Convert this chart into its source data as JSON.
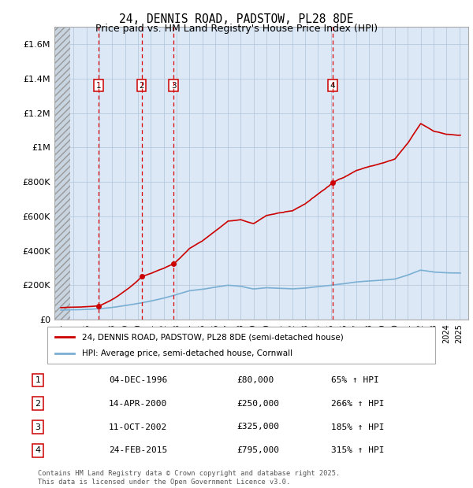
{
  "title": "24, DENNIS ROAD, PADSTOW, PL28 8DE",
  "subtitle": "Price paid vs. HM Land Registry's House Price Index (HPI)",
  "legend_property": "24, DENNIS ROAD, PADSTOW, PL28 8DE (semi-detached house)",
  "legend_hpi": "HPI: Average price, semi-detached house, Cornwall",
  "footer_line1": "Contains HM Land Registry data © Crown copyright and database right 2025.",
  "footer_line2": "This data is licensed under the Open Government Licence v3.0.",
  "ylim": [
    0,
    1700000
  ],
  "yticks": [
    0,
    200000,
    400000,
    600000,
    800000,
    1000000,
    1200000,
    1400000,
    1600000
  ],
  "ytick_labels": [
    "£0",
    "£200K",
    "£400K",
    "£600K",
    "£800K",
    "£1M",
    "£1.2M",
    "£1.4M",
    "£1.6M"
  ],
  "xlim_start": 1993.5,
  "xlim_end": 2025.7,
  "hatch_end": 1994.7,
  "sales": [
    {
      "num": 1,
      "year": 1996.92,
      "price": 80000,
      "label": "1",
      "date": "04-DEC-1996",
      "price_str": "£80,000",
      "pct": "65% ↑ HPI"
    },
    {
      "num": 2,
      "year": 2000.28,
      "price": 250000,
      "label": "2",
      "date": "14-APR-2000",
      "price_str": "£250,000",
      "pct": "266% ↑ HPI"
    },
    {
      "num": 3,
      "year": 2002.78,
      "price": 325000,
      "label": "3",
      "date": "11-OCT-2002",
      "price_str": "£325,000",
      "pct": "185% ↑ HPI"
    },
    {
      "num": 4,
      "year": 2015.15,
      "price": 795000,
      "label": "4",
      "date": "24-FEB-2015",
      "price_str": "£795,000",
      "pct": "315% ↑ HPI"
    }
  ],
  "property_color": "#cc0000",
  "hpi_color": "#7aafd4",
  "vline_color": "#dd0000",
  "box_color": "#cc0000",
  "background_color": "#dce8f5",
  "grid_color": "#b0c4d8",
  "hatch_bg": "#d0d8e0"
}
